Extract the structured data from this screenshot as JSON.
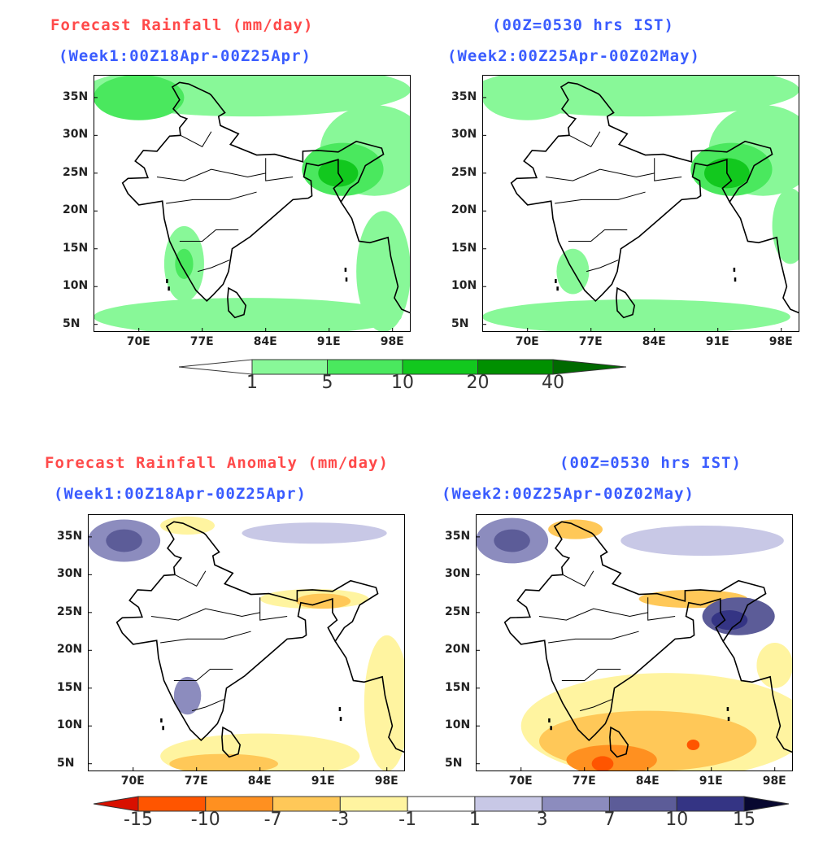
{
  "top": {
    "title": "Forecast Rainfall (mm/day)",
    "time_note": "(00Z=0530 hrs IST)",
    "panels": [
      {
        "subtitle": "(Week1:00Z18Apr-00Z25Apr)"
      },
      {
        "subtitle": "(Week2:00Z25Apr-00Z02May)"
      }
    ],
    "colorbar": {
      "labels": [
        "1",
        "5",
        "10",
        "20",
        "40"
      ],
      "colors": [
        "#ffffff",
        "#88f898",
        "#4ae85e",
        "#12c81e",
        "#009000",
        "#006a00"
      ]
    }
  },
  "bottom": {
    "title": "Forecast Rainfall Anomaly (mm/day)",
    "time_note": "(00Z=0530 hrs IST)",
    "panels": [
      {
        "subtitle": "(Week1:00Z18Apr-00Z25Apr)"
      },
      {
        "subtitle": "(Week2:00Z25Apr-00Z02May)"
      }
    ],
    "colorbar": {
      "labels": [
        "-15",
        "-10",
        "-7",
        "-3",
        "-1",
        "1",
        "3",
        "7",
        "10",
        "15"
      ],
      "colors": [
        "#d81000",
        "#ff5500",
        "#ff9020",
        "#ffc858",
        "#fff4a0",
        "#ffffff",
        "#c8c8e6",
        "#8c8cbe",
        "#5c5c98",
        "#343484",
        "#080830"
      ]
    }
  },
  "axes": {
    "lat_ticks": [
      "35N",
      "30N",
      "25N",
      "20N",
      "15N",
      "10N",
      "5N"
    ],
    "lon_ticks": [
      "70E",
      "77E",
      "84E",
      "91E",
      "98E"
    ]
  }
}
